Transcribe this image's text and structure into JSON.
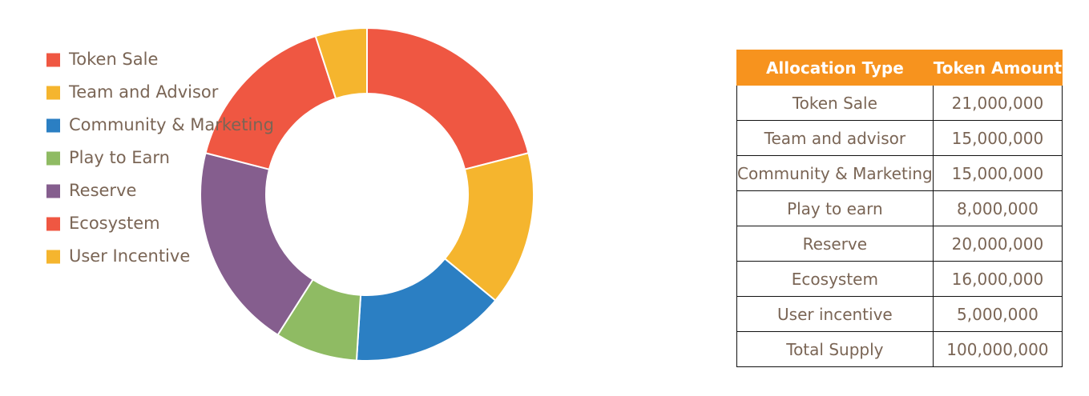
{
  "chart_data": {
    "type": "donut",
    "categories": [
      "Token Sale",
      "Team and Advisor",
      "Community & Marketing",
      "Play to Earn",
      "Reserve",
      "Ecosystem",
      "User Incentive"
    ],
    "values": [
      21000000,
      15000000,
      15000000,
      8000000,
      20000000,
      16000000,
      5000000
    ],
    "colors": [
      "#ef5742",
      "#f5b52e",
      "#2b7fc3",
      "#8fbb63",
      "#855e8e",
      "#ef5742",
      "#f5b52e"
    ]
  },
  "table": {
    "header": [
      "Allocation Type",
      "Token Amount"
    ],
    "rows": [
      [
        "Token Sale",
        "21,000,000"
      ],
      [
        "Team and advisor",
        "15,000,000"
      ],
      [
        "Community & Marketing",
        "15,000,000"
      ],
      [
        "Play to earn",
        "8,000,000"
      ],
      [
        "Reserve",
        "20,000,000"
      ],
      [
        "Ecosystem",
        "16,000,000"
      ],
      [
        "User incentive",
        "5,000,000"
      ],
      [
        "Total Supply",
        "100,000,000"
      ]
    ]
  }
}
